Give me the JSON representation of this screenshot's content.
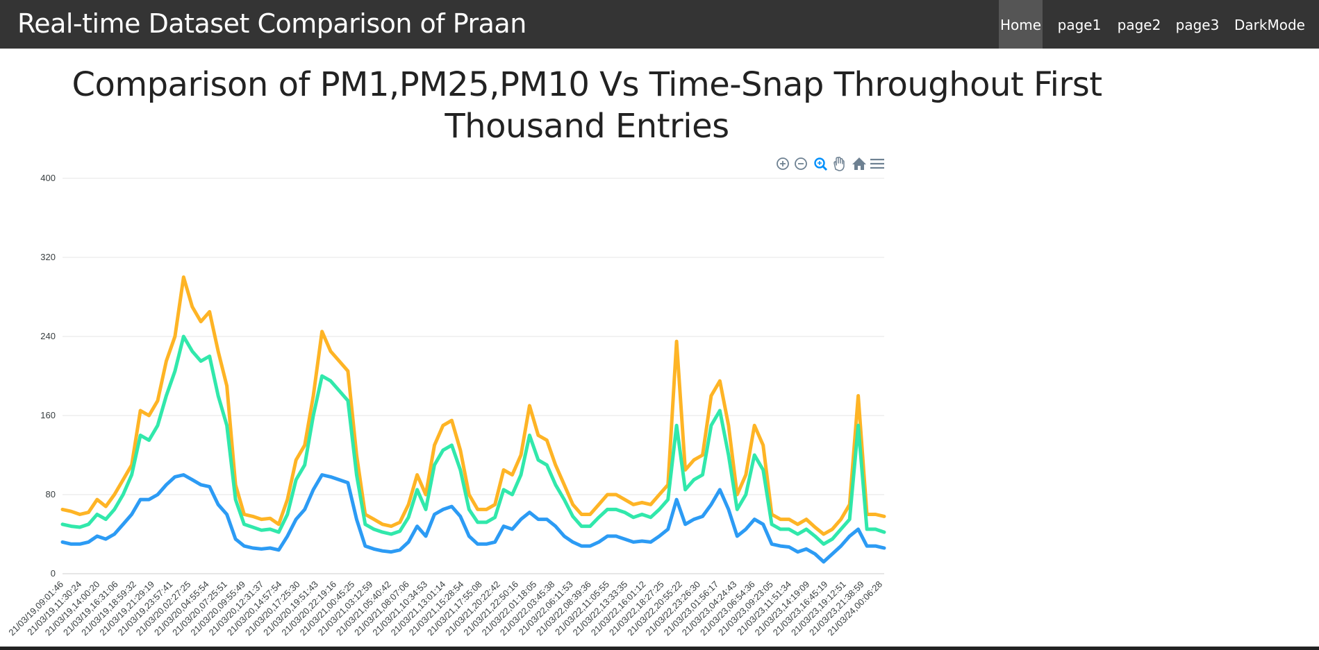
{
  "navbar": {
    "brand": "Real-time Dataset Comparison of Praan",
    "items": [
      {
        "label": "Home",
        "active": true
      },
      {
        "label": "page1",
        "active": false
      },
      {
        "label": "page2",
        "active": false
      },
      {
        "label": "page3",
        "active": false
      },
      {
        "label": "DarkMode",
        "active": false
      }
    ]
  },
  "page_title": "Comparison of PM1,PM25,PM10 Vs Time-Snap Throughout First Thousand Entries",
  "toolbar": {
    "icons": [
      "zoom-in-icon",
      "zoom-out-icon",
      "selection-zoom-icon",
      "pan-icon",
      "reset-home-icon",
      "menu-icon"
    ]
  },
  "chart_data": {
    "type": "line",
    "title": "",
    "xlabel": "",
    "ylabel": "",
    "ylim": [
      0,
      400
    ],
    "yticks": [
      0,
      80,
      160,
      240,
      320,
      400
    ],
    "grid": true,
    "legend": "none",
    "x_tick_labels": [
      "21/03/19,09:01:46",
      "21/03/19,11:30:24",
      "21/03/19,14:00:20",
      "21/03/19,16:31:06",
      "21/03/19,18:59:32",
      "21/03/19,21:29:19",
      "21/03/19,23:57:41",
      "21/03/20,02:27:25",
      "21/03/20,04:55:54",
      "21/03/20,07:25:51",
      "21/03/20,09:55:49",
      "21/03/20,12:31:37",
      "21/03/20,14:57:54",
      "21/03/20,17:25:30",
      "21/03/20,19:51:43",
      "21/03/20,22:19:16",
      "21/03/21,00:45:25",
      "21/03/21,03:12:59",
      "21/03/21,05:40:42",
      "21/03/21,08:07:06",
      "21/03/21,10:34:53",
      "21/03/21,13:01:14",
      "21/03/21,15:28:54",
      "21/03/21,17:55:08",
      "21/03/21,20:22:42",
      "21/03/21,22:50:16",
      "21/03/22,01:18:05",
      "21/03/22,03:45:38",
      "21/03/22,06:11:53",
      "21/03/22,08:39:36",
      "21/03/22,11:05:55",
      "21/03/22,13:33:35",
      "21/03/22,16:01:12",
      "21/03/22,18:27:25",
      "21/03/22,20:55:22",
      "21/03/22,23:26:30",
      "21/03/23,01:56:17",
      "21/03/23,04:24:43",
      "21/03/23,06:54:36",
      "21/03/23,09:23:05",
      "21/03/23,11:51:34",
      "21/03/23,14:19:09",
      "21/03/23,16:45:19",
      "21/03/23,19:12:51",
      "21/03/23,21:38:59",
      "21/03/24,00:06:28"
    ],
    "series": [
      {
        "key": "pm10",
        "color": "#feb019",
        "values": [
          65,
          63,
          60,
          62,
          75,
          68,
          80,
          95,
          110,
          165,
          160,
          175,
          215,
          240,
          300,
          270,
          255,
          265,
          225,
          190,
          90,
          60,
          58,
          55,
          56,
          50,
          75,
          115,
          130,
          180,
          245,
          225,
          215,
          205,
          120,
          60,
          55,
          50,
          48,
          52,
          70,
          100,
          80,
          130,
          150,
          155,
          125,
          80,
          65,
          65,
          70,
          105,
          100,
          120,
          170,
          140,
          135,
          110,
          90,
          70,
          60,
          60,
          70,
          80,
          80,
          75,
          70,
          72,
          70,
          80,
          90,
          235,
          105,
          115,
          120,
          180,
          195,
          150,
          80,
          100,
          150,
          130,
          60,
          55,
          55,
          50,
          55,
          47,
          40,
          45,
          55,
          70,
          180,
          60,
          60,
          58
        ]
      },
      {
        "key": "pm25",
        "color": "#26e7a6",
        "values": [
          50,
          48,
          47,
          50,
          60,
          55,
          65,
          80,
          100,
          140,
          135,
          150,
          180,
          205,
          240,
          225,
          215,
          220,
          180,
          150,
          75,
          50,
          47,
          44,
          45,
          42,
          60,
          95,
          110,
          160,
          200,
          195,
          185,
          175,
          100,
          50,
          45,
          42,
          40,
          43,
          57,
          85,
          65,
          110,
          125,
          130,
          105,
          65,
          52,
          52,
          57,
          85,
          80,
          100,
          140,
          115,
          110,
          90,
          75,
          58,
          48,
          48,
          57,
          65,
          65,
          62,
          57,
          60,
          57,
          65,
          75,
          150,
          85,
          95,
          100,
          150,
          165,
          120,
          65,
          80,
          120,
          105,
          50,
          45,
          45,
          40,
          45,
          38,
          30,
          35,
          45,
          55,
          150,
          45,
          45,
          42
        ]
      },
      {
        "key": "pm1",
        "color": "#2196f3",
        "values": [
          32,
          30,
          30,
          32,
          38,
          35,
          40,
          50,
          60,
          75,
          75,
          80,
          90,
          98,
          100,
          95,
          90,
          88,
          70,
          60,
          35,
          28,
          26,
          25,
          26,
          24,
          38,
          55,
          65,
          85,
          100,
          98,
          95,
          92,
          55,
          28,
          25,
          23,
          22,
          24,
          32,
          48,
          38,
          60,
          65,
          68,
          58,
          38,
          30,
          30,
          32,
          48,
          45,
          55,
          62,
          55,
          55,
          48,
          38,
          32,
          28,
          28,
          32,
          38,
          38,
          35,
          32,
          33,
          32,
          38,
          45,
          75,
          50,
          55,
          58,
          70,
          85,
          65,
          38,
          45,
          55,
          50,
          30,
          28,
          27,
          22,
          25,
          20,
          12,
          20,
          28,
          38,
          45,
          28,
          28,
          26
        ]
      }
    ]
  }
}
